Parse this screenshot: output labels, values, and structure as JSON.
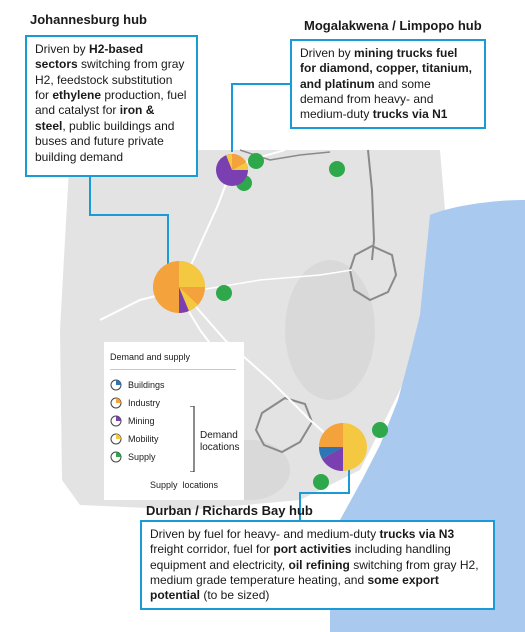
{
  "hubs": {
    "johannesburg": {
      "title": "Johannesburg hub",
      "description": [
        {
          "t": "Driven by "
        },
        {
          "t": "H2-based sectors",
          "b": true
        },
        {
          "t": " switching from gray H2, feedstock substitution for "
        },
        {
          "t": "ethylene",
          "b": true
        },
        {
          "t": " production, fuel and catalyst for "
        },
        {
          "t": "iron & steel",
          "b": true
        },
        {
          "t": ", public buildings and buses and future private building demand"
        }
      ]
    },
    "mogalakwena": {
      "title": "Mogalakwena / Limpopo hub",
      "description": [
        {
          "t": "Driven by "
        },
        {
          "t": "mining trucks fuel for diamond, copper, titanium, and platinum",
          "b": true
        },
        {
          "t": " and some demand from heavy- and medium-duty "
        },
        {
          "t": "trucks via N1",
          "b": true
        }
      ]
    },
    "durban": {
      "title": "Durban / Richards Bay hub",
      "description": [
        {
          "t": "Driven by fuel for heavy- and medium-duty "
        },
        {
          "t": "trucks via N3",
          "b": true
        },
        {
          "t": " freight corridor, fuel for "
        },
        {
          "t": "port activities",
          "b": true
        },
        {
          "t": " including handling equipment and electricity, "
        },
        {
          "t": "oil refining",
          "b": true
        },
        {
          "t": " switching from gray H2, medium grade temperature heating, and "
        },
        {
          "t": "some export potential",
          "b": true
        },
        {
          "t": " (to be sized)"
        }
      ]
    }
  },
  "legend": {
    "title": "Demand and supply",
    "items": [
      {
        "label": "Buildings",
        "color": "#2e75b6"
      },
      {
        "label": "Industry",
        "color": "#f4a23c"
      },
      {
        "label": "Mining",
        "color": "#7a3fb0"
      },
      {
        "label": "Mobility",
        "color": "#f5c842"
      },
      {
        "label": "Supply",
        "color": "#2ea84b"
      }
    ],
    "demand_locations": "Demand locations",
    "supply_locations": "Supply  locations"
  },
  "colors": {
    "callout_border": "#1a9ad6",
    "land": "#e3e3e3",
    "ocean": "#a9c9ef",
    "border": "#8a8a8a",
    "road": "#ffffff"
  }
}
